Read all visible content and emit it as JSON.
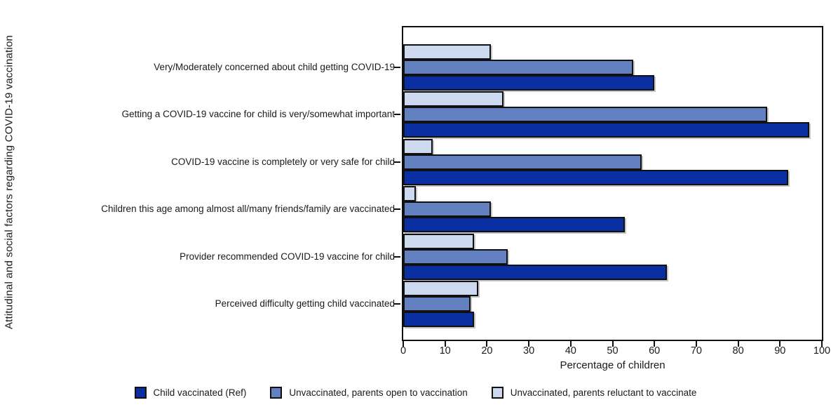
{
  "chart_data": {
    "type": "bar",
    "orientation": "horizontal",
    "title": "",
    "xlabel": "Percentage of children",
    "ylabel": "Attitudinal and social factors regarding COVID-19 vaccination",
    "xlim": [
      0,
      100
    ],
    "xticks": [
      0,
      10,
      20,
      30,
      40,
      50,
      60,
      70,
      80,
      90,
      100
    ],
    "grid": false,
    "legend_position": "bottom",
    "categories": [
      "Very/Moderately concerned about child getting COVID-19",
      "Getting a COVID-19 vaccine for child is very/somewhat important",
      "COVID-19 vaccine is completely or very safe for child",
      "Children this age among almost all/many friends/family are vaccinated",
      "Provider recommended COVID-19 vaccine for child",
      "Perceived difficulty getting child vaccinated"
    ],
    "series": [
      {
        "name": "Child vaccinated (Ref)",
        "color": "#0A2FA3",
        "values": [
          60,
          97,
          92,
          53,
          63,
          17
        ]
      },
      {
        "name": "Unvaccinated, parents open to vaccination",
        "color": "#6381C1",
        "values": [
          55,
          87,
          57,
          21,
          25,
          16
        ]
      },
      {
        "name": "Unvaccinated, parents reluctant to vaccinate",
        "color": "#CDD9EE",
        "values": [
          21,
          24,
          7,
          3,
          17,
          18
        ]
      }
    ]
  }
}
